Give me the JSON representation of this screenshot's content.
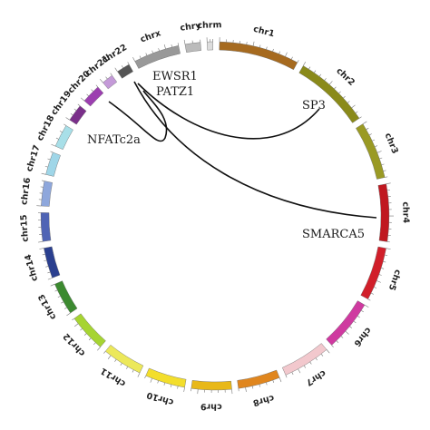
{
  "chromosomes": [
    {
      "name": "chr1",
      "color": "#a66a1f"
    },
    {
      "name": "chr2",
      "color": "#8a8a1a"
    },
    {
      "name": "chr3",
      "color": "#9a9a24"
    },
    {
      "name": "chr4",
      "color": "#c01820"
    },
    {
      "name": "chr5",
      "color": "#d11f2a"
    },
    {
      "name": "chr6",
      "color": "#cf3aa0"
    },
    {
      "name": "chr7",
      "color": "#f2c8cd"
    },
    {
      "name": "chr8",
      "color": "#e0861e"
    },
    {
      "name": "chr9",
      "color": "#e8b818"
    },
    {
      "name": "chr10",
      "color": "#f3de2c"
    },
    {
      "name": "chr11",
      "color": "#ece85a"
    },
    {
      "name": "chr12",
      "color": "#a6d432"
    },
    {
      "name": "chr13",
      "color": "#3c8a30"
    },
    {
      "name": "chr14",
      "color": "#2a3f8f"
    },
    {
      "name": "chr15",
      "color": "#4f64b5"
    },
    {
      "name": "chr16",
      "color": "#8ea7dc"
    },
    {
      "name": "chr17",
      "color": "#9fd6e8"
    },
    {
      "name": "chr18",
      "color": "#a8dfe8"
    },
    {
      "name": "chr19",
      "color": "#7a2f8a"
    },
    {
      "name": "chr20",
      "color": "#9c3fb0"
    },
    {
      "name": "chr21",
      "color": "#c49ad8"
    },
    {
      "name": "chr22",
      "color": "#555555"
    },
    {
      "name": "chrx",
      "color": "#999999"
    },
    {
      "name": "chry",
      "color": "#bbbbbb"
    },
    {
      "name": "chrm",
      "color": "#dddddd"
    }
  ],
  "genes": {
    "ewsr1": "EWSR1",
    "patz1": "PATZ1",
    "sp3": "SP3",
    "nfatc2a": "NFATc2a",
    "smarca5": "SMARCA5"
  }
}
